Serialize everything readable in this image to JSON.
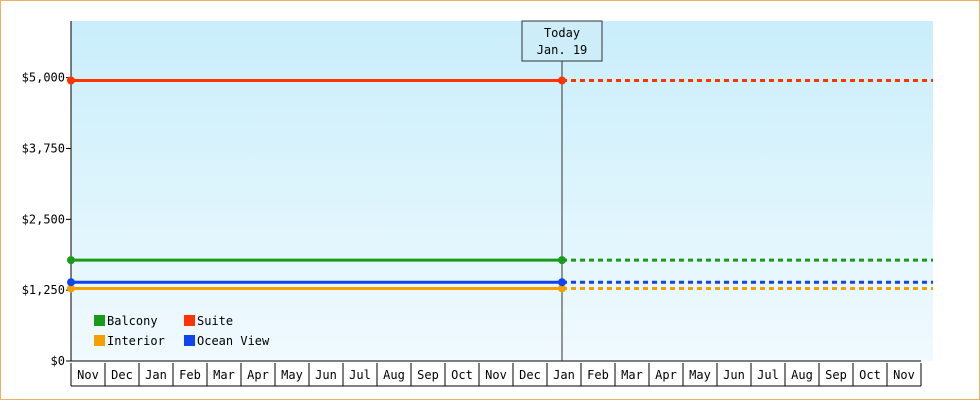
{
  "chart_data": {
    "type": "line",
    "title": "",
    "xlabel": "",
    "ylabel": "",
    "ylim": [
      0,
      6000
    ],
    "yticks": [
      0,
      1250,
      2500,
      3750,
      5000
    ],
    "ytick_labels": [
      "$0",
      "$1,250",
      "$2,500",
      "$3,750",
      "$5,000"
    ],
    "x_categories": [
      "Nov",
      "Dec",
      "Jan",
      "Feb",
      "Mar",
      "Apr",
      "May",
      "Jun",
      "Jul",
      "Aug",
      "Sep",
      "Oct",
      "Nov",
      "Dec",
      "Jan",
      "Feb",
      "Mar",
      "Apr",
      "May",
      "Jun",
      "Jul",
      "Aug",
      "Sep",
      "Oct",
      "Nov"
    ],
    "today": {
      "label": "Today",
      "date": "Jan. 19",
      "month_index": 14
    },
    "series": [
      {
        "name": "Balcony",
        "color": "#1a9a1a",
        "value": 1780
      },
      {
        "name": "Suite",
        "color": "#ff3300",
        "value": 4950
      },
      {
        "name": "Interior",
        "color": "#f5a000",
        "value": 1280
      },
      {
        "name": "Ocean View",
        "color": "#1144ee",
        "value": 1390
      }
    ],
    "legend_position": "bottom-left",
    "grid": false,
    "plot_background": [
      "#c9eefb",
      "#f1fafe"
    ]
  }
}
